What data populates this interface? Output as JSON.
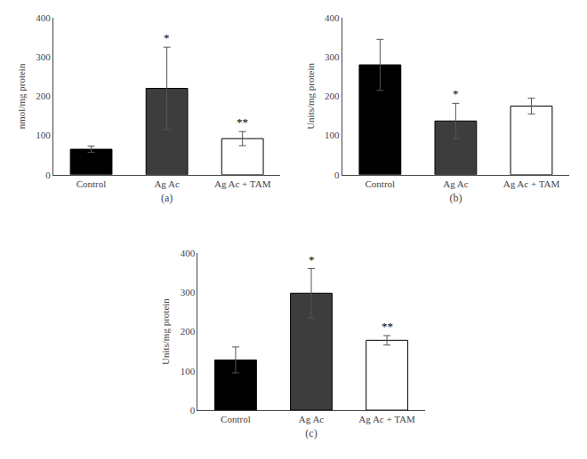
{
  "chart_data": [
    {
      "type": "bar",
      "xlabel": "(a)",
      "ylabel": "nmol/mg protein",
      "categories": [
        "Control",
        "Ag Ac",
        "Ag Ac + TAM"
      ],
      "values": [
        65,
        220,
        92
      ],
      "errors": [
        8,
        105,
        18
      ],
      "colors": [
        "#000000",
        "#3d3d3d",
        "#ffffff"
      ],
      "ylim": [
        0,
        400
      ],
      "yticks": [
        0,
        100,
        200,
        300,
        400
      ],
      "grid": false,
      "annotations": [
        {
          "text": "*",
          "x": "Ag Ac",
          "y": 328
        },
        {
          "text": "**",
          "x": "Ag Ac + TAM",
          "y": 112
        }
      ]
    },
    {
      "type": "bar",
      "xlabel": "(b)",
      "ylabel": "Units/mg protein",
      "categories": [
        "Control",
        "Ag Ac",
        "Ag Ac + TAM"
      ],
      "values": [
        280,
        137,
        175
      ],
      "errors": [
        65,
        45,
        20
      ],
      "colors": [
        "#000000",
        "#3d3d3d",
        "#ffffff"
      ],
      "ylim": [
        0,
        400
      ],
      "yticks": [
        0,
        100,
        200,
        300,
        400
      ],
      "grid": false,
      "annotations": [
        {
          "text": "*",
          "x": "Ag Ac",
          "y": 184
        }
      ]
    },
    {
      "type": "bar",
      "xlabel": "(c)",
      "ylabel": "Units/mg protein",
      "categories": [
        "Control",
        "Ag Ac",
        "Ag Ac + TAM"
      ],
      "values": [
        128,
        298,
        178
      ],
      "errors": [
        33,
        63,
        12
      ],
      "colors": [
        "#000000",
        "#3d3d3d",
        "#ffffff"
      ],
      "ylim": [
        0,
        400
      ],
      "yticks": [
        0,
        100,
        200,
        300,
        400
      ],
      "grid": false,
      "annotations": [
        {
          "text": "*",
          "x": "Ag Ac",
          "y": 363
        },
        {
          "text": "**",
          "x": "Ag Ac + TAM",
          "y": 192
        }
      ]
    }
  ]
}
